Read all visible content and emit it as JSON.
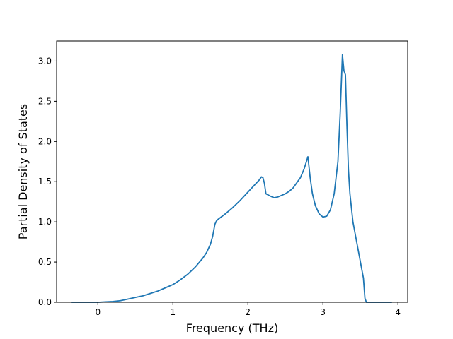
{
  "chart_data": {
    "type": "line",
    "title": "",
    "xlabel": "Frequency (THz)",
    "ylabel": "Partial Density of States",
    "xlim": [
      -0.55,
      4.13
    ],
    "ylim": [
      0.0,
      3.25
    ],
    "xticks": [
      0,
      1,
      2,
      3,
      4
    ],
    "xtick_labels": [
      "0",
      "1",
      "2",
      "3",
      "4"
    ],
    "yticks": [
      0.0,
      0.5,
      1.0,
      1.5,
      2.0,
      2.5,
      3.0
    ],
    "ytick_labels": [
      "0.0",
      "0.5",
      "1.0",
      "1.5",
      "2.0",
      "2.5",
      "3.0"
    ],
    "grid": false,
    "line_color": "#1f77b4",
    "series": [
      {
        "x": [
          -0.35,
          0.0,
          0.1,
          0.2,
          0.3,
          0.4,
          0.5,
          0.6,
          0.7,
          0.8,
          0.9,
          1.0,
          1.1,
          1.2,
          1.3,
          1.4,
          1.45,
          1.5,
          1.53,
          1.56,
          1.58,
          1.6,
          1.7,
          1.8,
          1.9,
          2.0,
          2.1,
          2.15,
          2.18,
          2.2,
          2.22,
          2.24,
          2.3,
          2.35,
          2.4,
          2.5,
          2.55,
          2.6,
          2.7,
          2.75,
          2.78,
          2.8,
          2.83,
          2.86,
          2.9,
          2.95,
          3.0,
          3.05,
          3.1,
          3.15,
          3.2,
          3.23,
          3.26,
          3.28,
          3.3,
          3.32,
          3.34,
          3.36,
          3.4,
          3.45,
          3.5,
          3.54,
          3.56,
          3.58,
          3.7,
          3.92
        ],
        "y": [
          0.0,
          0.0,
          0.005,
          0.01,
          0.02,
          0.04,
          0.06,
          0.08,
          0.11,
          0.14,
          0.18,
          0.22,
          0.28,
          0.35,
          0.44,
          0.55,
          0.62,
          0.72,
          0.82,
          0.97,
          1.01,
          1.03,
          1.1,
          1.18,
          1.27,
          1.37,
          1.47,
          1.52,
          1.56,
          1.55,
          1.48,
          1.35,
          1.32,
          1.3,
          1.31,
          1.35,
          1.38,
          1.42,
          1.55,
          1.66,
          1.75,
          1.81,
          1.55,
          1.35,
          1.2,
          1.1,
          1.06,
          1.07,
          1.15,
          1.35,
          1.75,
          2.35,
          3.08,
          2.88,
          2.83,
          2.2,
          1.65,
          1.35,
          1.0,
          0.75,
          0.5,
          0.3,
          0.05,
          0.0,
          0.0,
          0.0
        ]
      }
    ]
  }
}
